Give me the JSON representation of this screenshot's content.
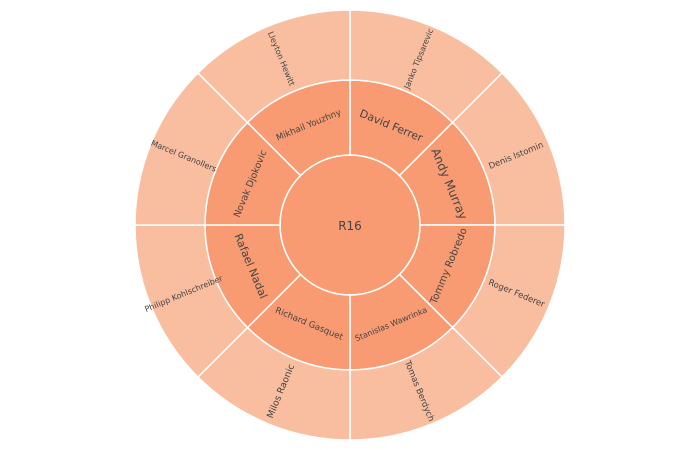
{
  "chart_data": {
    "type": "sunburst",
    "root": {
      "label": "R16"
    },
    "colors": {
      "root": "#f89b72",
      "ring1": "#f89b72",
      "ring2": "#f9bd9f",
      "stroke": "#ffffff",
      "text": "#444444"
    },
    "segments": [
      {
        "ring": 1,
        "label": "David Ferrer",
        "parent": "R16",
        "value": 1
      },
      {
        "ring": 1,
        "label": "Andy Murray",
        "parent": "R16",
        "value": 1
      },
      {
        "ring": 1,
        "label": "Tommy Robredo",
        "parent": "R16",
        "value": 1
      },
      {
        "ring": 1,
        "label": "Stanislas Wawrinka",
        "parent": "R16",
        "value": 1
      },
      {
        "ring": 1,
        "label": "Richard Gasquet",
        "parent": "R16",
        "value": 1
      },
      {
        "ring": 1,
        "label": "Rafael Nadal",
        "parent": "R16",
        "value": 1
      },
      {
        "ring": 1,
        "label": "Novak Djokovic",
        "parent": "R16",
        "value": 1
      },
      {
        "ring": 1,
        "label": "Mikhail Youzhny",
        "parent": "R16",
        "value": 1
      },
      {
        "ring": 2,
        "label": "Janko Tipsarevic",
        "parent": "David Ferrer",
        "value": 1
      },
      {
        "ring": 2,
        "label": "Denis Istomin",
        "parent": "Andy Murray",
        "value": 1
      },
      {
        "ring": 2,
        "label": "Roger Federer",
        "parent": "Tommy Robredo",
        "value": 1
      },
      {
        "ring": 2,
        "label": "Tomas Berdych",
        "parent": "Stanislas Wawrinka",
        "value": 1
      },
      {
        "ring": 2,
        "label": "Milos Raonic",
        "parent": "Richard Gasquet",
        "value": 1
      },
      {
        "ring": 2,
        "label": "Philipp Kohlschreiber",
        "parent": "Rafael Nadal",
        "value": 1
      },
      {
        "ring": 2,
        "label": "Marcel Granollers",
        "parent": "Novak Djokovic",
        "value": 1
      },
      {
        "ring": 2,
        "label": "Lleyton Hewitt",
        "parent": "Mikhail Youzhny",
        "value": 1
      }
    ]
  }
}
